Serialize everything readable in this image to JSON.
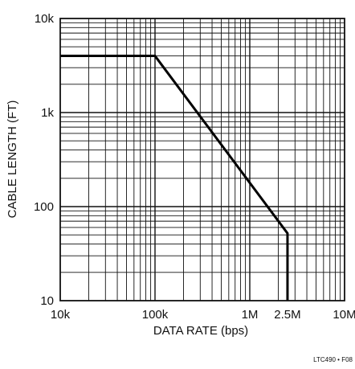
{
  "chart_data": {
    "type": "line",
    "title": "",
    "xlabel": "DATA RATE (bps)",
    "ylabel": "CABLE LENGTH (FT)",
    "xscale": "log",
    "yscale": "log",
    "xlim": [
      10000,
      10000000
    ],
    "ylim": [
      10,
      10000
    ],
    "grid": true,
    "legend": "none",
    "x_tick_labels": [
      {
        "value": 10000,
        "label": "10k"
      },
      {
        "value": 100000,
        "label": "100k"
      },
      {
        "value": 1000000,
        "label": "1M"
      },
      {
        "value": 2500000,
        "label": "2.5M"
      },
      {
        "value": 10000000,
        "label": "10M"
      }
    ],
    "y_tick_labels": [
      {
        "value": 10,
        "label": "10"
      },
      {
        "value": 100,
        "label": "100"
      },
      {
        "value": 1000,
        "label": "1k"
      },
      {
        "value": 10000,
        "label": "10k"
      }
    ],
    "series": [
      {
        "x": [
          10000,
          100000,
          2500000,
          2500000
        ],
        "y": [
          4000,
          4000,
          52,
          10
        ],
        "color": "#000000"
      }
    ]
  },
  "figure_id": "LTC490 • F08",
  "colors": {
    "grid": "#111111",
    "line": "#000000",
    "text": "#111111"
  }
}
